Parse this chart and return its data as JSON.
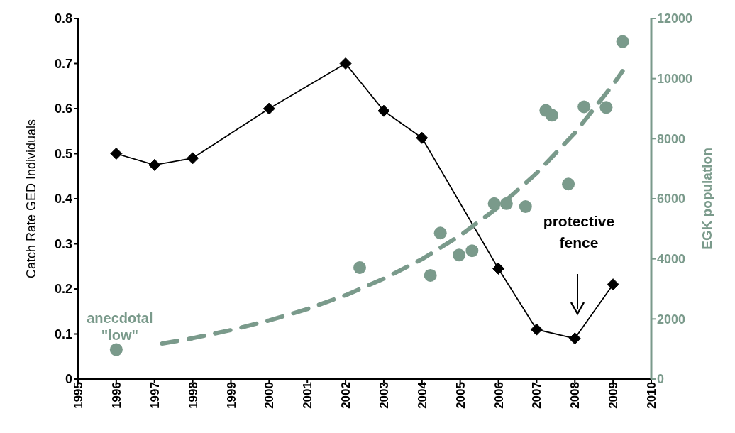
{
  "chart_data": {
    "type": "line",
    "ylabel": "Catch Rate GED Individuals",
    "y2label": "EGK population",
    "xlim": [
      1995,
      2010
    ],
    "xticks": [
      1995,
      1996,
      1997,
      1998,
      1999,
      2000,
      2001,
      2002,
      2003,
      2004,
      2005,
      2006,
      2007,
      2008,
      2009,
      2010
    ],
    "ylim": [
      0,
      0.8
    ],
    "yticks": [
      0,
      0.1,
      0.2,
      0.3,
      0.4,
      0.5,
      0.6,
      0.7,
      0.8
    ],
    "y2lim": [
      0,
      12000
    ],
    "y2ticks": [
      0,
      2000,
      4000,
      6000,
      8000,
      10000,
      12000
    ],
    "grid": false,
    "series": [
      {
        "color": "#000000",
        "marker": "diamond",
        "line_style": "solid",
        "x": [
          1996,
          1997,
          1998,
          2000,
          2002,
          2003,
          2004,
          2006,
          2007,
          2008,
          2009
        ],
        "values": [
          0.5,
          0.475,
          0.49,
          0.6,
          0.7,
          0.595,
          0.535,
          0.245,
          0.11,
          0.09,
          0.21
        ]
      },
      {
        "type": "scatter",
        "axis": "y2",
        "color": "#7a9a8b",
        "marker": "circle",
        "x": [
          2002.37,
          2004.22,
          2004.48,
          2004.97,
          2005.31,
          2005.89,
          2006.21,
          2006.71,
          2007.24,
          2007.4,
          2007.83,
          2008.24,
          2008.82,
          2009.25
        ],
        "values": [
          3710,
          3450,
          4860,
          4130,
          4270,
          5840,
          5840,
          5740,
          8940,
          8780,
          6490,
          9060,
          9040,
          11230
        ]
      },
      {
        "type": "scatter",
        "axis": "y2",
        "color": "#7a9a8b",
        "marker": "circle",
        "x": [
          1996
        ],
        "values": [
          980
        ]
      },
      {
        "type": "line",
        "axis": "y2",
        "color": "#7a9a8b",
        "marker": "none",
        "line_style": "dashed",
        "x": [
          1997.2,
          1998,
          1999,
          2000,
          2001,
          2002,
          2003,
          2004,
          2005,
          2006,
          2007,
          2008,
          2009,
          2009.25
        ],
        "values": [
          1180,
          1360,
          1630,
          1950,
          2330,
          2790,
          3340,
          3990,
          4780,
          5720,
          6850,
          8190,
          9800,
          10250
        ]
      }
    ],
    "annotations": [
      "anecdotal \"low\"",
      "protective fence"
    ]
  }
}
